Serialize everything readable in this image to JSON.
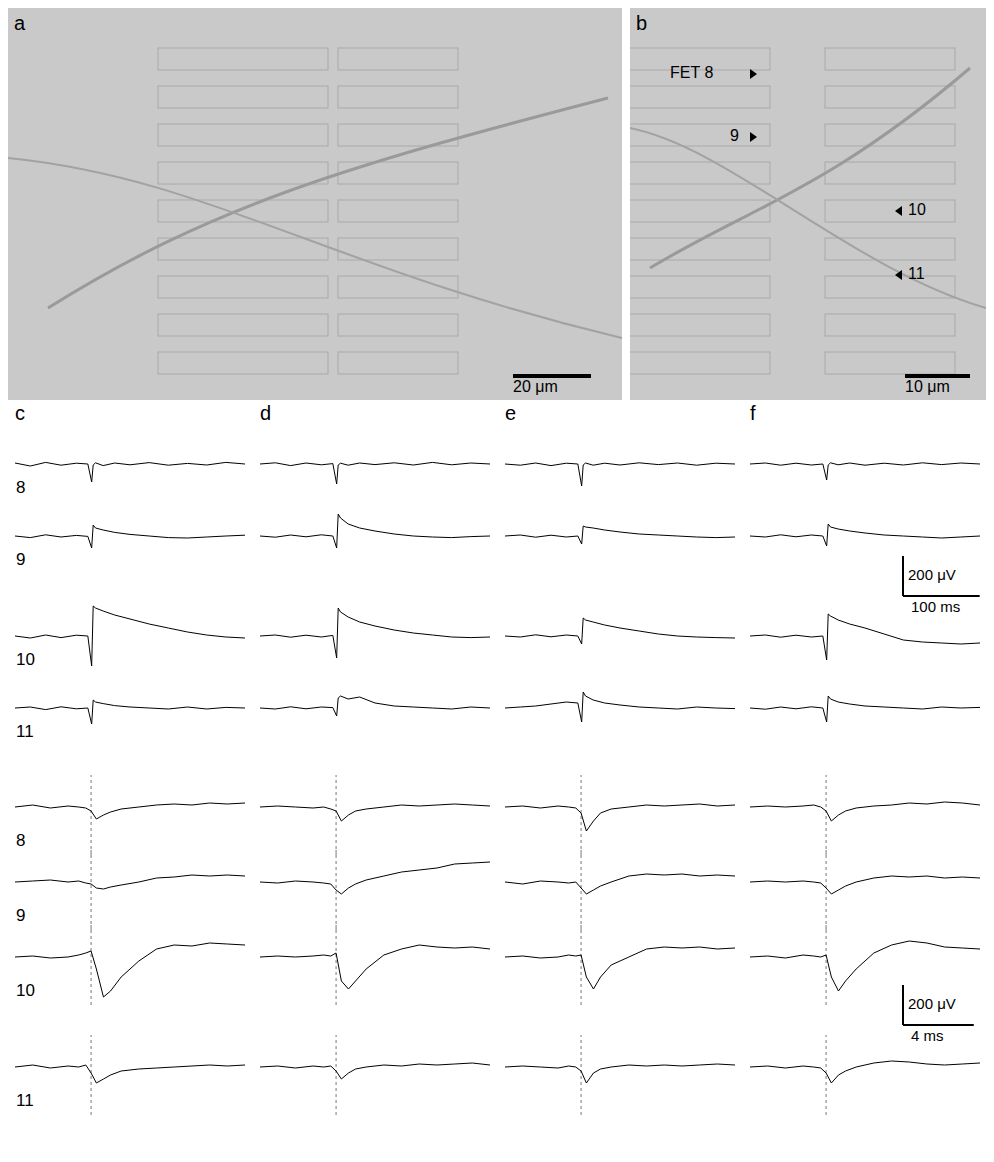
{
  "images": {
    "a": {
      "label": "a",
      "scale_bar": "20 μm"
    },
    "b": {
      "label": "b",
      "scale_bar": "10 μm",
      "markers": [
        "FET 8",
        "9",
        "10",
        "11"
      ]
    }
  },
  "row_labels": [
    "8",
    "9",
    "10",
    "11"
  ],
  "scale_bars": [
    {
      "y": 200,
      "y_label": "200 μV",
      "x": 100,
      "x_label": "100 ms"
    },
    {
      "y": 200,
      "y_label": "200 μV",
      "x": 4,
      "x_label": "4 ms"
    }
  ],
  "chart_data": [
    {
      "type": "line",
      "title": "c",
      "tick_labels": false,
      "xlim": [
        0,
        300
      ],
      "ylim": [
        -180,
        180
      ],
      "x": [
        0,
        20,
        40,
        60,
        80,
        95,
        100,
        102,
        105,
        115,
        130,
        150,
        175,
        200,
        225,
        250,
        275,
        300
      ],
      "series": [
        {
          "color": "#000000",
          "values": [
            5,
            -10,
            8,
            -6,
            4,
            0,
            -90,
            -5,
            6,
            -8,
            5,
            -4,
            7,
            -6,
            3,
            -5,
            8,
            0
          ]
        },
        {
          "color": "#000000",
          "values": [
            0,
            -8,
            6,
            -5,
            3,
            -2,
            -60,
            55,
            40,
            30,
            18,
            8,
            0,
            -8,
            -10,
            -5,
            0,
            4
          ]
        },
        {
          "color": "#000000",
          "values": [
            0,
            -10,
            5,
            -8,
            4,
            0,
            -150,
            150,
            140,
            125,
            105,
            85,
            60,
            40,
            20,
            5,
            -5,
            -10
          ]
        },
        {
          "color": "#000000",
          "values": [
            0,
            5,
            -8,
            6,
            -4,
            0,
            -80,
            40,
            30,
            22,
            12,
            5,
            0,
            -5,
            5,
            -5,
            3,
            0
          ]
        }
      ]
    },
    {
      "type": "line",
      "title": "d",
      "tick_labels": false,
      "xlim": [
        0,
        300
      ],
      "ylim": [
        -180,
        180
      ],
      "x": [
        0,
        20,
        40,
        60,
        80,
        95,
        100,
        102,
        105,
        115,
        130,
        150,
        175,
        200,
        225,
        250,
        275,
        300
      ],
      "series": [
        {
          "color": "#000000",
          "values": [
            0,
            6,
            -8,
            5,
            -4,
            2,
            -100,
            -5,
            4,
            -6,
            5,
            -3,
            6,
            -5,
            8,
            -4,
            5,
            0
          ]
        },
        {
          "color": "#000000",
          "values": [
            0,
            -6,
            5,
            -4,
            6,
            0,
            -60,
            110,
            90,
            60,
            40,
            25,
            10,
            0,
            -5,
            -8,
            -3,
            0
          ]
        },
        {
          "color": "#000000",
          "values": [
            0,
            5,
            -6,
            4,
            -5,
            3,
            -110,
            140,
            120,
            95,
            70,
            50,
            30,
            15,
            5,
            -5,
            -8,
            -5
          ]
        },
        {
          "color": "#000000",
          "values": [
            0,
            -5,
            6,
            -4,
            5,
            2,
            -40,
            50,
            60,
            45,
            55,
            25,
            10,
            5,
            0,
            -5,
            5,
            0
          ]
        }
      ]
    },
    {
      "type": "line",
      "title": "e",
      "tick_labels": false,
      "xlim": [
        0,
        300
      ],
      "ylim": [
        -180,
        180
      ],
      "x": [
        0,
        20,
        40,
        60,
        80,
        95,
        100,
        102,
        105,
        115,
        130,
        150,
        175,
        200,
        225,
        250,
        275,
        300
      ],
      "series": [
        {
          "color": "#000000",
          "values": [
            0,
            -6,
            5,
            -8,
            4,
            0,
            -110,
            -5,
            5,
            -6,
            4,
            -5,
            6,
            -3,
            5,
            -6,
            4,
            0
          ]
        },
        {
          "color": "#000000",
          "values": [
            0,
            5,
            -6,
            4,
            -5,
            0,
            -40,
            50,
            45,
            40,
            30,
            20,
            10,
            5,
            0,
            -5,
            -8,
            -5
          ]
        },
        {
          "color": "#000000",
          "values": [
            0,
            -5,
            6,
            -4,
            5,
            0,
            -40,
            90,
            80,
            70,
            55,
            40,
            25,
            10,
            0,
            -5,
            -8,
            -10
          ]
        },
        {
          "color": "#000000",
          "values": [
            0,
            5,
            10,
            20,
            30,
            25,
            -70,
            80,
            60,
            40,
            25,
            15,
            5,
            0,
            -5,
            5,
            0,
            -3
          ]
        }
      ]
    },
    {
      "type": "line",
      "title": "f",
      "tick_labels": false,
      "xlim": [
        0,
        300
      ],
      "ylim": [
        -180,
        180
      ],
      "x": [
        0,
        20,
        40,
        60,
        80,
        95,
        100,
        102,
        105,
        115,
        130,
        150,
        175,
        200,
        225,
        250,
        275,
        300
      ],
      "series": [
        {
          "color": "#000000",
          "values": [
            0,
            5,
            -6,
            4,
            -5,
            0,
            -80,
            -5,
            6,
            -4,
            5,
            -6,
            4,
            -5,
            6,
            -3,
            5,
            0
          ]
        },
        {
          "color": "#000000",
          "values": [
            0,
            -5,
            6,
            -4,
            5,
            0,
            -50,
            60,
            45,
            35,
            25,
            15,
            5,
            0,
            -5,
            -10,
            -5,
            0
          ]
        },
        {
          "color": "#000000",
          "values": [
            0,
            5,
            -6,
            4,
            -5,
            0,
            -120,
            110,
            100,
            80,
            60,
            40,
            10,
            -20,
            -30,
            -35,
            -40,
            -35
          ]
        },
        {
          "color": "#000000",
          "values": [
            0,
            -6,
            5,
            -4,
            6,
            0,
            -70,
            60,
            45,
            30,
            20,
            10,
            5,
            0,
            -5,
            5,
            0,
            3
          ]
        }
      ]
    },
    {
      "type": "line",
      "tick_labels": false,
      "xlim": [
        0,
        13
      ],
      "ylim": [
        -240,
        160
      ],
      "spike_time": 4.3,
      "x": [
        0,
        1,
        2,
        3,
        3.6,
        4.0,
        4.3,
        4.6,
        5,
        5.4,
        6,
        7,
        8,
        9,
        10,
        11,
        12,
        13
      ],
      "series": [
        {
          "color": "#000000",
          "values": [
            0,
            10,
            -5,
            5,
            0,
            -5,
            -20,
            -60,
            -40,
            -25,
            -10,
            0,
            10,
            15,
            10,
            20,
            15,
            20
          ]
        },
        {
          "color": "#000000",
          "values": [
            0,
            5,
            10,
            0,
            5,
            -5,
            -10,
            -30,
            -35,
            -25,
            -15,
            0,
            20,
            25,
            35,
            30,
            35,
            30
          ]
        },
        {
          "color": "#000000",
          "values": [
            0,
            5,
            -5,
            0,
            10,
            20,
            30,
            -60,
            -200,
            -170,
            -100,
            -20,
            40,
            60,
            55,
            70,
            65,
            60
          ]
        },
        {
          "color": "#000000",
          "values": [
            0,
            10,
            -5,
            5,
            0,
            10,
            -30,
            -80,
            -60,
            -40,
            -20,
            -10,
            -5,
            0,
            5,
            10,
            5,
            10
          ]
        }
      ]
    },
    {
      "type": "line",
      "tick_labels": false,
      "xlim": [
        0,
        13
      ],
      "ylim": [
        -240,
        160
      ],
      "spike_time": 4.3,
      "x": [
        0,
        1,
        2,
        3,
        3.6,
        4.0,
        4.3,
        4.6,
        5,
        5.4,
        6,
        7,
        8,
        9,
        10,
        11,
        12,
        13
      ],
      "series": [
        {
          "color": "#000000",
          "values": [
            0,
            5,
            0,
            -5,
            0,
            -10,
            -20,
            -70,
            -40,
            -20,
            -10,
            0,
            10,
            5,
            10,
            15,
            10,
            5
          ]
        },
        {
          "color": "#000000",
          "values": [
            0,
            -5,
            5,
            0,
            -5,
            -10,
            -40,
            -60,
            -30,
            -10,
            10,
            30,
            50,
            60,
            70,
            90,
            95,
            100
          ]
        },
        {
          "color": "#000000",
          "values": [
            0,
            5,
            0,
            5,
            10,
            5,
            20,
            -120,
            -160,
            -120,
            -60,
            10,
            40,
            60,
            50,
            45,
            50,
            40
          ]
        },
        {
          "color": "#000000",
          "values": [
            0,
            5,
            -5,
            5,
            0,
            5,
            -20,
            -60,
            -30,
            -10,
            0,
            10,
            5,
            15,
            10,
            15,
            20,
            10
          ]
        }
      ]
    },
    {
      "type": "line",
      "tick_labels": false,
      "xlim": [
        0,
        13
      ],
      "ylim": [
        -240,
        160
      ],
      "spike_time": 4.3,
      "x": [
        0,
        1,
        2,
        3,
        3.6,
        4.0,
        4.3,
        4.6,
        5,
        5.4,
        6,
        7,
        8,
        9,
        10,
        11,
        12,
        13
      ],
      "series": [
        {
          "color": "#000000",
          "values": [
            0,
            5,
            -5,
            5,
            0,
            -5,
            -30,
            -120,
            -70,
            -30,
            -10,
            0,
            10,
            5,
            10,
            15,
            5,
            10
          ]
        },
        {
          "color": "#000000",
          "values": [
            0,
            -10,
            5,
            0,
            -5,
            0,
            -30,
            -60,
            -40,
            -20,
            0,
            30,
            40,
            35,
            40,
            30,
            35,
            30
          ]
        },
        {
          "color": "#000000",
          "values": [
            0,
            5,
            -5,
            0,
            10,
            5,
            10,
            -100,
            -160,
            -100,
            -40,
            0,
            40,
            50,
            45,
            50,
            40,
            45
          ]
        },
        {
          "color": "#000000",
          "values": [
            0,
            5,
            0,
            -5,
            5,
            0,
            -20,
            -80,
            -30,
            -10,
            0,
            10,
            5,
            10,
            5,
            10,
            15,
            10
          ]
        }
      ]
    },
    {
      "type": "line",
      "tick_labels": false,
      "xlim": [
        0,
        13
      ],
      "ylim": [
        -240,
        160
      ],
      "spike_time": 4.3,
      "x": [
        0,
        1,
        2,
        3,
        3.6,
        4.0,
        4.3,
        4.6,
        5,
        5.4,
        6,
        7,
        8,
        9,
        10,
        11,
        12,
        13
      ],
      "series": [
        {
          "color": "#000000",
          "values": [
            0,
            5,
            0,
            5,
            10,
            0,
            -20,
            -70,
            -40,
            -20,
            -5,
            5,
            10,
            20,
            15,
            25,
            20,
            10
          ]
        },
        {
          "color": "#000000",
          "values": [
            0,
            5,
            0,
            5,
            0,
            -5,
            -30,
            -60,
            -40,
            -20,
            0,
            20,
            30,
            25,
            30,
            20,
            25,
            20
          ]
        },
        {
          "color": "#000000",
          "values": [
            0,
            5,
            -5,
            10,
            5,
            0,
            10,
            -100,
            -170,
            -120,
            -60,
            20,
            60,
            80,
            70,
            50,
            45,
            40
          ]
        },
        {
          "color": "#000000",
          "values": [
            0,
            5,
            -5,
            5,
            0,
            -5,
            -30,
            -80,
            -40,
            -20,
            0,
            20,
            30,
            25,
            15,
            10,
            15,
            20
          ]
        }
      ]
    }
  ]
}
